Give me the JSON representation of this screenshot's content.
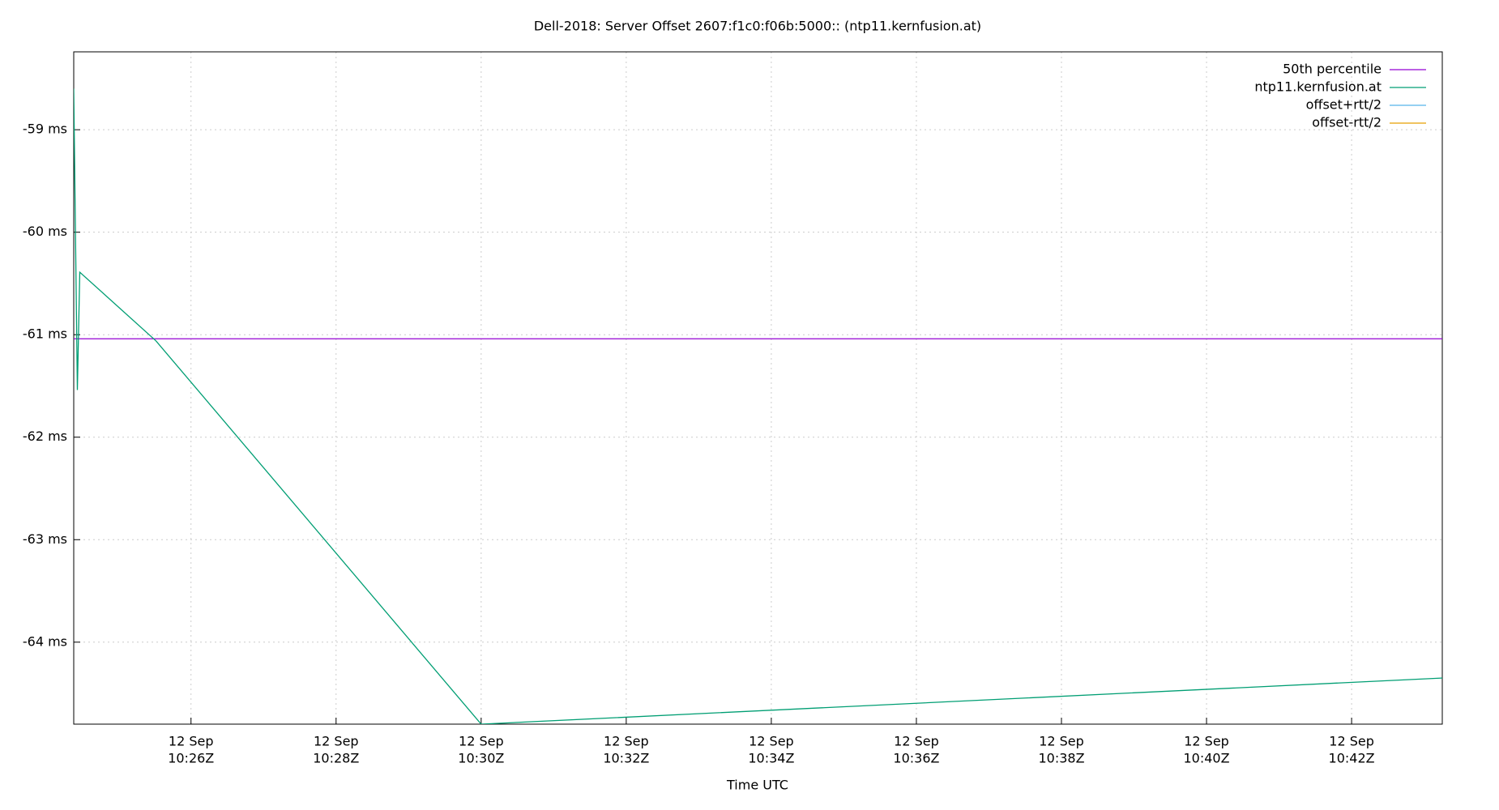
{
  "chart_data": {
    "type": "line",
    "title": "Dell-2018: Server Offset 2607:f1c0:f06b:5000:: (ntp11.kernfusion.at)",
    "xlabel": "Time UTC",
    "xlim": [
      "10:24:23",
      "10:43:15"
    ],
    "xticks": [
      {
        "value": "10:26:00",
        "label": [
          "12 Sep",
          "10:26Z"
        ]
      },
      {
        "value": "10:28:00",
        "label": [
          "12 Sep",
          "10:28Z"
        ]
      },
      {
        "value": "10:30:00",
        "label": [
          "12 Sep",
          "10:30Z"
        ]
      },
      {
        "value": "10:32:00",
        "label": [
          "12 Sep",
          "10:32Z"
        ]
      },
      {
        "value": "10:34:00",
        "label": [
          "12 Sep",
          "10:34Z"
        ]
      },
      {
        "value": "10:36:00",
        "label": [
          "12 Sep",
          "10:36Z"
        ]
      },
      {
        "value": "10:38:00",
        "label": [
          "12 Sep",
          "10:38Z"
        ]
      },
      {
        "value": "10:40:00",
        "label": [
          "12 Sep",
          "10:40Z"
        ]
      },
      {
        "value": "10:42:00",
        "label": [
          "12 Sep",
          "10:42Z"
        ]
      }
    ],
    "ylim": [
      -64.8,
      -58.24
    ],
    "yticks": [
      {
        "value": -59,
        "label": "-59 ms"
      },
      {
        "value": -60,
        "label": "-60 ms"
      },
      {
        "value": -61,
        "label": "-61 ms"
      },
      {
        "value": -62,
        "label": "-62 ms"
      },
      {
        "value": -63,
        "label": "-63 ms"
      },
      {
        "value": -64,
        "label": "-64 ms"
      }
    ],
    "grid": true,
    "legend": "top-right",
    "series": [
      {
        "name": "50th percentile",
        "color": "#9400d3",
        "x": [
          "10:24:23",
          "10:43:15"
        ],
        "values": [
          -61.04,
          -61.04
        ]
      },
      {
        "name": "ntp11.kernfusion.at",
        "color": "#009e73",
        "x": [
          "10:24:23",
          "10:24:26",
          "10:24:28",
          "10:25:31",
          "10:30:00",
          "10:43:15"
        ],
        "values": [
          -58.6,
          -61.54,
          -60.39,
          -61.06,
          -64.8,
          -64.35
        ]
      },
      {
        "name": "offset+rtt/2",
        "color": "#56b4e9",
        "x": [],
        "values": []
      },
      {
        "name": "offset-rtt/2",
        "color": "#e69f00",
        "x": [],
        "values": []
      }
    ]
  }
}
